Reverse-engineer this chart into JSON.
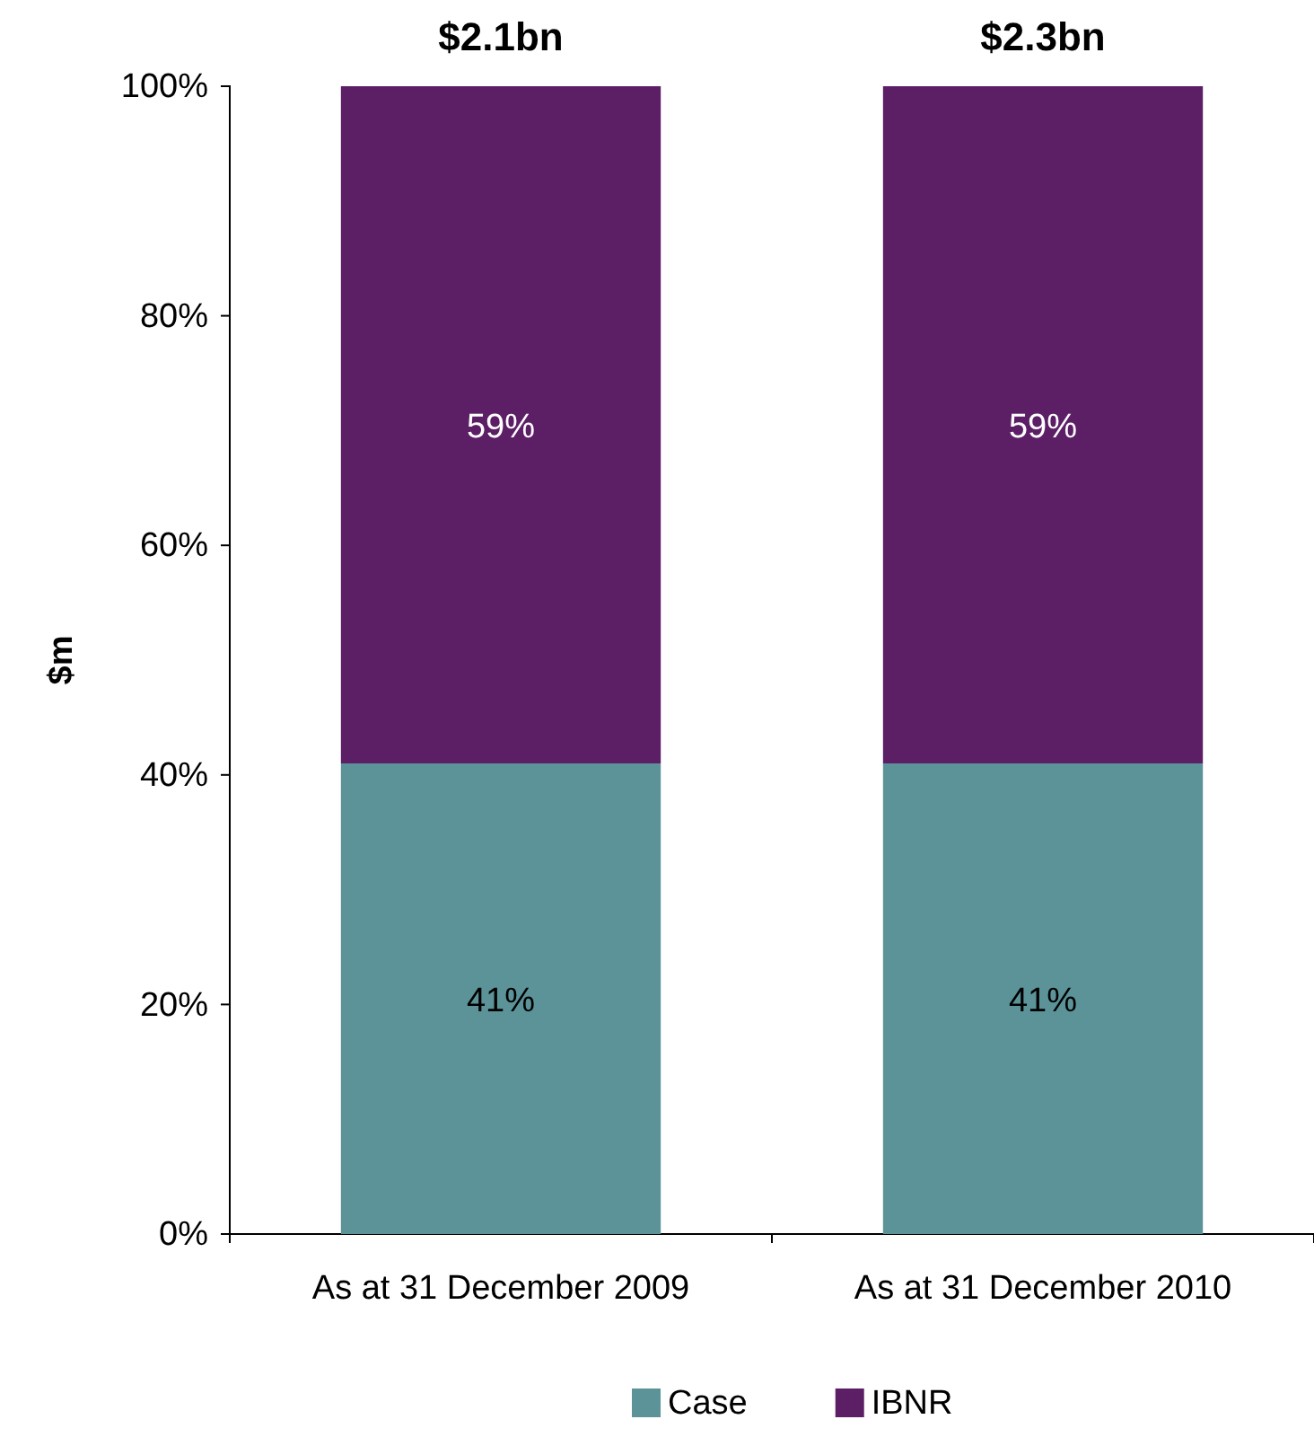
{
  "chart_data": {
    "type": "bar",
    "stacked": true,
    "ylabel": "$m",
    "categories": [
      "As at 31 December 2009",
      "As at 31 December 2010"
    ],
    "series": [
      {
        "name": "Case",
        "color": "#5b9399",
        "values": [
          41,
          41
        ],
        "value_labels": [
          "41%",
          "41%"
        ]
      },
      {
        "name": "IBNR",
        "color": "#5c1f66",
        "values": [
          59,
          59
        ],
        "value_labels": [
          "59%",
          "59%"
        ]
      }
    ],
    "ylim": [
      0,
      100
    ],
    "yticks": [
      {
        "value": 0,
        "label": "0%"
      },
      {
        "value": 20,
        "label": "20%"
      },
      {
        "value": 40,
        "label": "40%"
      },
      {
        "value": 60,
        "label": "60%"
      },
      {
        "value": 80,
        "label": "80%"
      },
      {
        "value": 100,
        "label": "100%"
      }
    ],
    "annotations": [
      {
        "text": "$2.1bn",
        "x": "As at 31 December 2009",
        "y": 100
      },
      {
        "text": "$2.3bn",
        "x": "As at 31 December 2010",
        "y": 100
      }
    ],
    "grid": false,
    "legend": "bottom"
  }
}
